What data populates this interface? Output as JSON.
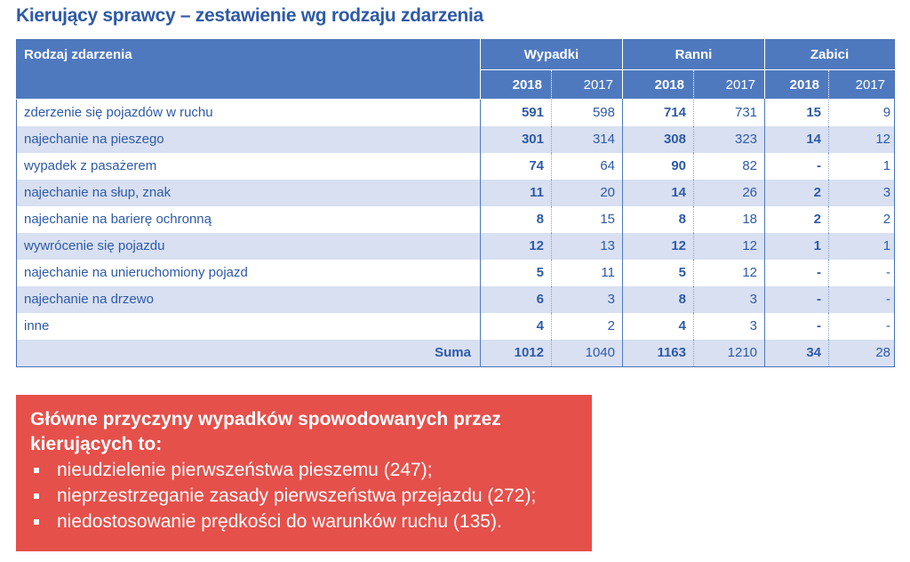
{
  "title": "Kierujący sprawcy – zestawienie wg rodzaju zdarzenia",
  "table": {
    "category_header": "Rodzaj zdarzenia",
    "groups": [
      "Wypadki",
      "Ranni",
      "Zabici"
    ],
    "years": [
      "2018",
      "2017",
      "2018",
      "2017",
      "2018",
      "2017"
    ],
    "rows": [
      {
        "label": "zderzenie się pojazdów w ruchu",
        "values": [
          "591",
          "598",
          "714",
          "731",
          "15",
          "9"
        ]
      },
      {
        "label": "najechanie na pieszego",
        "values": [
          "301",
          "314",
          "308",
          "323",
          "14",
          "12"
        ]
      },
      {
        "label": "wypadek z pasażerem",
        "values": [
          "74",
          "64",
          "90",
          "82",
          "-",
          "1"
        ]
      },
      {
        "label": "najechanie na słup, znak",
        "values": [
          "11",
          "20",
          "14",
          "26",
          "2",
          "3"
        ]
      },
      {
        "label": "najechanie na barierę ochronną",
        "values": [
          "8",
          "15",
          "8",
          "18",
          "2",
          "2"
        ]
      },
      {
        "label": "wywrócenie się pojazdu",
        "values": [
          "12",
          "13",
          "12",
          "12",
          "1",
          "1"
        ]
      },
      {
        "label": "najechanie na unieruchomiony pojazd",
        "values": [
          "5",
          "11",
          "5",
          "12",
          "-",
          "-"
        ]
      },
      {
        "label": "najechanie na drzewo",
        "values": [
          "6",
          "3",
          "8",
          "3",
          "-",
          "-"
        ]
      },
      {
        "label": "inne",
        "values": [
          "4",
          "2",
          "4",
          "3",
          "-",
          "-"
        ]
      }
    ],
    "sum": {
      "label": "Suma",
      "values": [
        "1012",
        "1040",
        "1163",
        "1210",
        "34",
        "28"
      ]
    }
  },
  "causes": {
    "heading": "Główne przyczyny wypadków spowodowanych przez kierujących to:",
    "items": [
      "nieudzielenie pierwszeństwa pieszemu (247);",
      "nieprzestrzeganie zasady pierwszeństwa przejazdu (272);",
      "niedostosowanie prędkości do warunków ruchu (135)."
    ]
  },
  "colors": {
    "header_blue": "#4f79bf",
    "title_blue": "#2e5aa7",
    "stripe": "#d8e0f1",
    "box_red": "#e5504b"
  }
}
